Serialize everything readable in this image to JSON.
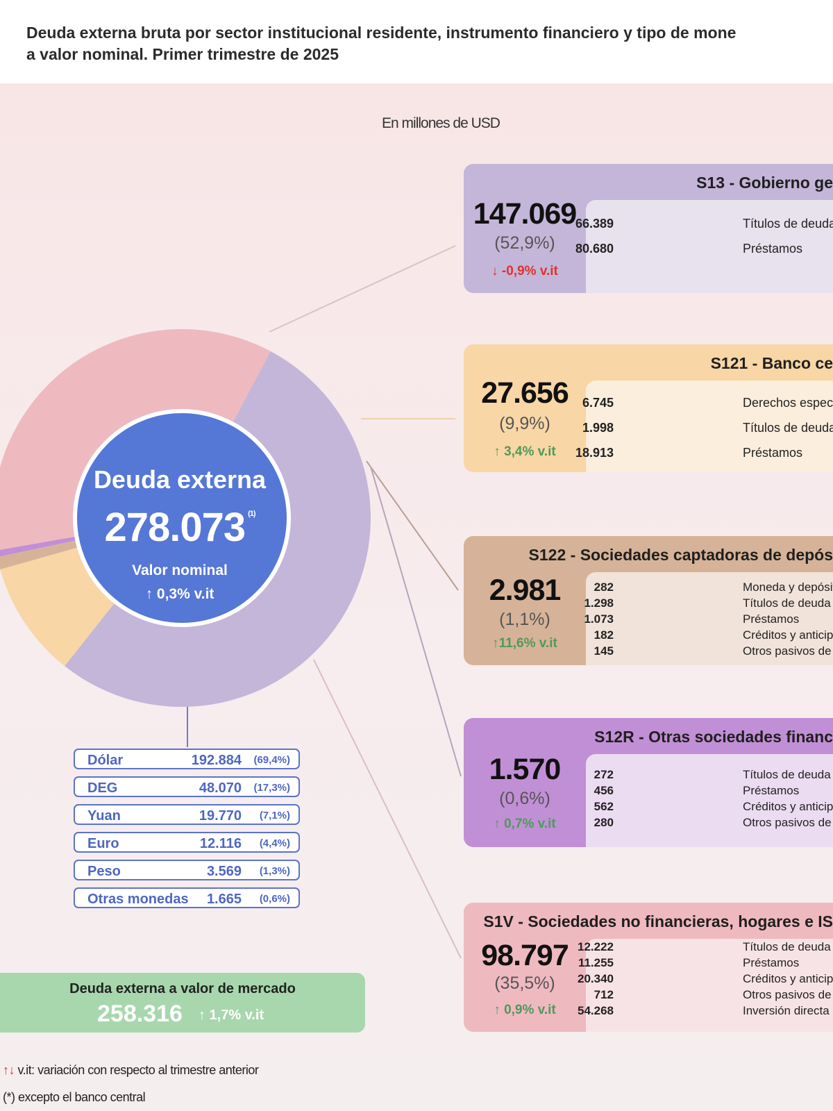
{
  "title_line1": "Deuda externa bruta por sector institucional residente, instrumento financiero y tipo de mone",
  "title_line2": "a valor nominal. Primer trimestre de 2025",
  "units": "En millones de USD",
  "center": {
    "label": "Deuda externa",
    "value": "278.073",
    "note_mark": "(1)",
    "sub": "Valor nominal",
    "change": "↑ 0,3%  v.it"
  },
  "colors": {
    "gobierno": "#c4b6d8",
    "banco_central": "#f8d6a5",
    "captadoras": "#d6b398",
    "otras_financieras": "#c18fd6",
    "no_financieras": "#efb9c0",
    "center": "#5577d6",
    "currency_border": "#5b73c9",
    "market": "#a8d7ad"
  },
  "chart_data": {
    "type": "pie",
    "title": "Deuda externa bruta por sector institucional residente, instrumento financiero y tipo de mone a valor nominal. Primer trimestre de 2025",
    "units": "En millones de USD",
    "total": 278073,
    "categories": [
      "S13 - Gobierno ge",
      "S121 - Banco ce",
      "S122 - Sociedades captadoras de depós",
      "S12R - Otras sociedades financ",
      "S1V - Sociedades no financieras, hogares e IS"
    ],
    "values": [
      147069,
      27656,
      2981,
      1570,
      98797
    ],
    "shares_pct": [
      52.9,
      9.9,
      1.1,
      0.6,
      35.5
    ],
    "changes_pct": [
      -0.9,
      3.4,
      11.6,
      0.7,
      0.9
    ]
  },
  "sectors": [
    {
      "title": "S13 - Gobierno ge",
      "value": "147.069",
      "share": "(52,9%)",
      "change": "↓ -0,9% v.it",
      "direction": "down",
      "items": [
        {
          "v": "66.389",
          "l": "Títulos de deuda"
        },
        {
          "v": "80.680",
          "l": "Préstamos"
        }
      ]
    },
    {
      "title": "S121 - Banco ce",
      "value": "27.656",
      "share": "(9,9%)",
      "change": "↑ 3,4% v.it",
      "direction": "up",
      "items": [
        {
          "v": "6.745",
          "l": "Derechos especiales de giro (asign"
        },
        {
          "v": "1.998",
          "l": "Títulos de deuda"
        },
        {
          "v": "18.913",
          "l": "Préstamos"
        }
      ]
    },
    {
      "title": "S122 - Sociedades captadoras de depós",
      "value": "2.981",
      "share": "(1,1%)",
      "change": "↑11,6% v.it",
      "direction": "up",
      "items": [
        {
          "v": "282",
          "l": "Moneda y depósitos"
        },
        {
          "v": "1.298",
          "l": "Títulos de deuda"
        },
        {
          "v": "1.073",
          "l": "Préstamos"
        },
        {
          "v": "182",
          "l": "Créditos y anticipos comerciales"
        },
        {
          "v": "145",
          "l": "Otros pasivos de deuda"
        }
      ]
    },
    {
      "title": "S12R - Otras sociedades financ",
      "value": "1.570",
      "share": "(0,6%)",
      "change": "↑ 0,7% v.it",
      "direction": "up",
      "items": [
        {
          "v": "272",
          "l": "Títulos de deuda"
        },
        {
          "v": "456",
          "l": "Préstamos"
        },
        {
          "v": "562",
          "l": "Créditos y anticipos comerciale"
        },
        {
          "v": "280",
          "l": "Otros pasivos de deuda"
        }
      ]
    },
    {
      "title": "S1V - Sociedades no financieras, hogares e IS",
      "value": "98.797",
      "share": "(35,5%)",
      "change": "↑ 0,9% v.it",
      "direction": "up",
      "items": [
        {
          "v": "12.222",
          "l": "Títulos de deuda"
        },
        {
          "v": "11.255",
          "l": "Préstamos"
        },
        {
          "v": "20.340",
          "l": "Créditos y anticipos comercial"
        },
        {
          "v": "712",
          "l": "Otros pasivos de deuda"
        },
        {
          "v": "54.268",
          "l": "Inversión directa"
        }
      ]
    }
  ],
  "currencies": [
    {
      "name": "Dólar",
      "value": "192.884",
      "pct": "(69,4%)"
    },
    {
      "name": "DEG",
      "value": "48.070",
      "pct": "(17,3%)"
    },
    {
      "name": "Yuan",
      "value": "19.770",
      "pct": "(7,1%)"
    },
    {
      "name": "Euro",
      "value": "12.116",
      "pct": "(4,4%)"
    },
    {
      "name": "Peso",
      "value": "3.569",
      "pct": "(1,3%)"
    },
    {
      "name": "Otras monedas",
      "value": "1.665",
      "pct": "(0,6%)"
    }
  ],
  "market": {
    "label": "Deuda externa a valor de mercado",
    "value": "258.316",
    "change": "↑ 1,7% v.it"
  },
  "notes": {
    "arrows": "↑↓",
    "vit": "v.it: variación con respecto al trimestre anterior",
    "footnote": "(*) excepto el banco central"
  }
}
